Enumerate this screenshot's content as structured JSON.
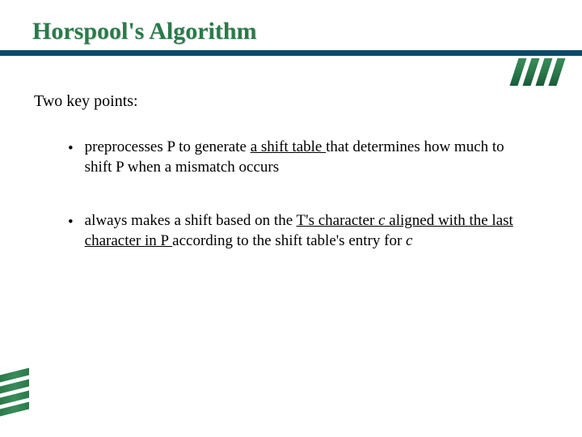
{
  "title": "Horspool's Algorithm",
  "subtitle": "Two key points:",
  "bullets": [
    {
      "parts": [
        {
          "text": "preprocesses P to generate ",
          "u": false,
          "i": false
        },
        {
          "text": "a shift table ",
          "u": true,
          "i": false
        },
        {
          "text": "that determines how much to shift P when a mismatch occurs",
          "u": false,
          "i": false
        }
      ]
    },
    {
      "parts": [
        {
          "text": "always makes a shift based on the ",
          "u": false,
          "i": false
        },
        {
          "text": "T's character ",
          "u": true,
          "i": false
        },
        {
          "text": "c",
          "u": true,
          "i": true
        },
        {
          "text": " aligned with the last character in P ",
          "u": true,
          "i": false
        },
        {
          "text": "according to the shift table's entry for ",
          "u": false,
          "i": false
        },
        {
          "text": "c",
          "u": false,
          "i": true
        }
      ]
    }
  ],
  "colors": {
    "title": "#2a7a4a",
    "underline": "#0a4a6a",
    "text": "#000000",
    "background": "#ffffff",
    "accent_green_light": "#3a8a5a",
    "accent_green_dark": "#1a5a3a"
  },
  "fonts": {
    "title_size": 30,
    "subtitle_size": 20,
    "body_size": 19,
    "family": "serif"
  },
  "deco": {
    "top_bars": 4,
    "bottom_bars": 4
  }
}
